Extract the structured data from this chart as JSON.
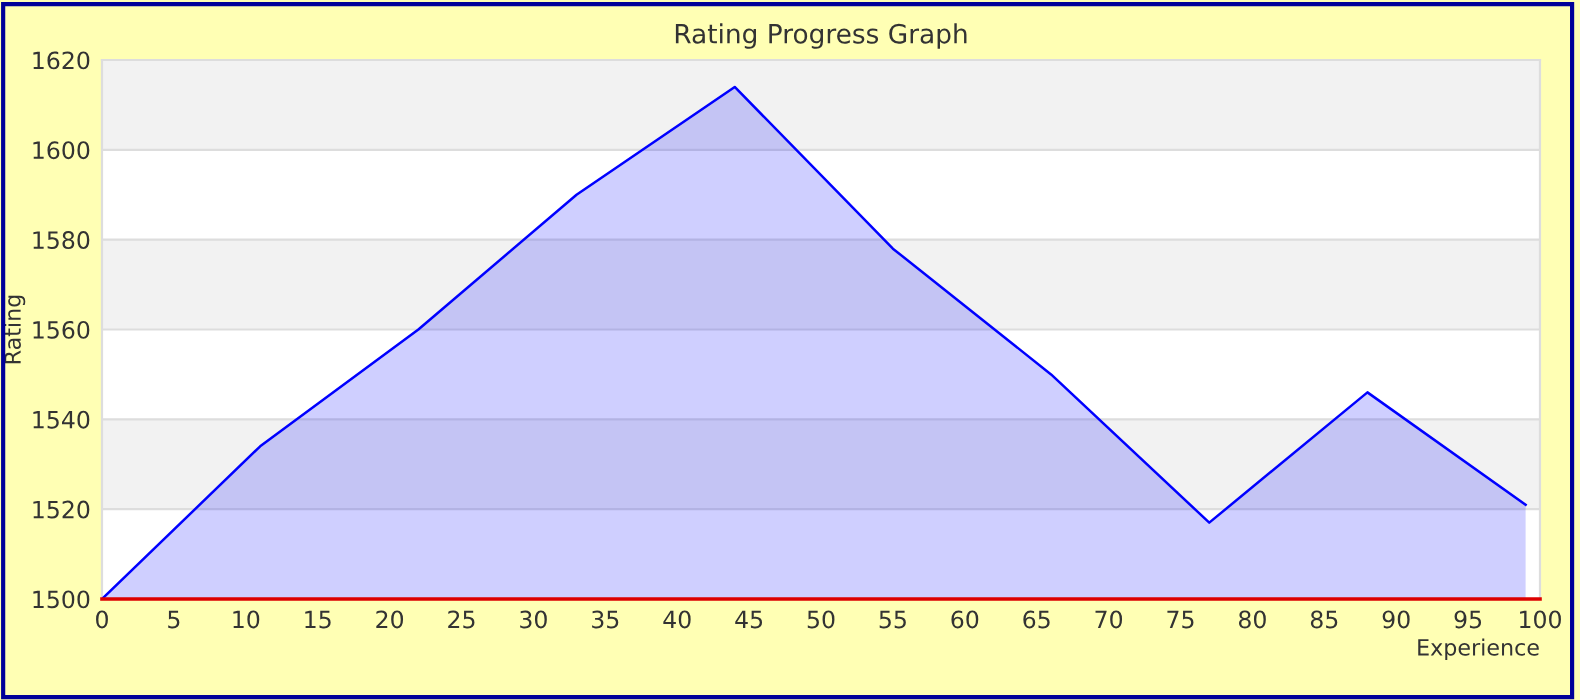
{
  "chart_data": {
    "type": "area",
    "title": "Rating Progress Graph",
    "xlabel": "Experience",
    "ylabel": "Rating",
    "x": [
      0,
      11,
      22,
      33,
      44,
      55,
      66,
      77,
      88,
      99
    ],
    "series": [
      {
        "color": "#0000ff",
        "values": [
          1500,
          1534,
          1560,
          1590,
          1614,
          1578,
          1550,
          1517,
          1546,
          1521
        ]
      }
    ],
    "xlim": [
      0,
      100
    ],
    "xticks": [
      0,
      5,
      10,
      15,
      20,
      25,
      30,
      35,
      40,
      45,
      50,
      55,
      60,
      65,
      70,
      75,
      80,
      85,
      90,
      95,
      100
    ],
    "ylim": [
      1500,
      1620
    ],
    "yticks": [
      1500,
      1520,
      1540,
      1560,
      1580,
      1600,
      1620
    ],
    "grid": "y",
    "legend": false
  }
}
